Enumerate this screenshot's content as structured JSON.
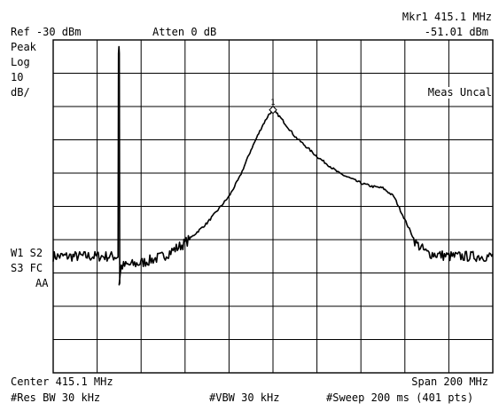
{
  "header": {
    "marker_label": "Mkr1  415.1 MHz",
    "marker_level": "-51.01 dBm",
    "ref_level": "Ref -30 dBm",
    "attenuation": "Atten 0 dB"
  },
  "left_panel": {
    "detector": "Peak",
    "scale_type": "Log",
    "scale_value": "10",
    "scale_unit": "dB/",
    "trace_w1_s2": "W1  S2",
    "trace_s3_fc": "S3  FC",
    "trace_aa": "AA"
  },
  "annotations": {
    "meas_uncal": "Meas Uncal",
    "marker_number": "1"
  },
  "footer": {
    "center": "Center 415.1 MHz",
    "span": "Span 200 MHz",
    "res_bw": "#Res BW 30 kHz",
    "vbw": "#VBW 30 kHz",
    "sweep": "#Sweep 200 ms (401 pts)"
  },
  "colors": {
    "trace": "#000000",
    "grid": "#000000",
    "background": "#ffffff"
  },
  "chart_data": {
    "type": "line",
    "x_unit": "MHz",
    "y_unit": "dBm",
    "xlim": [
      315.1,
      515.1
    ],
    "ylim": [
      -130,
      -30
    ],
    "grid": true,
    "divisions": {
      "x": 10,
      "y": 10
    },
    "marker": {
      "x": 415.1,
      "y": -51.01
    },
    "spur": {
      "x": 345.1,
      "y_top": -34,
      "y_base": -103
    },
    "series": [
      {
        "x": [
          315.1,
          325.1,
          335.1,
          344.6,
          345.1,
          346.1,
          355.1,
          365.1,
          375.1,
          385.1,
          395.1,
          400.1,
          405.1,
          410.1,
          413.1,
          415.1,
          418.1,
          425.1,
          435.1,
          445.1,
          455.1,
          460.1,
          465.1,
          470.1,
          475.1,
          480.1,
          485.1,
          495.1,
          505.1,
          515.1
        ],
        "y": [
          -95,
          -95,
          -95,
          -95,
          -103,
          -98,
          -97,
          -95,
          -91,
          -85,
          -77,
          -71,
          -63,
          -56,
          -52.5,
          -51,
          -53,
          -59,
          -65,
          -70,
          -73,
          -74,
          -74.5,
          -77,
          -84,
          -91,
          -94,
          -95,
          -95,
          -95
        ]
      }
    ]
  }
}
